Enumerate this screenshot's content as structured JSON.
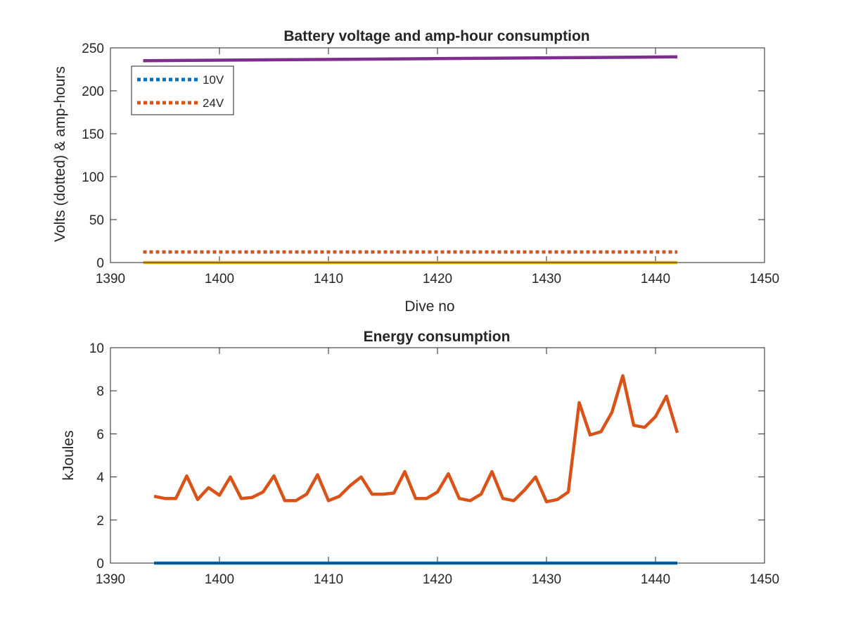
{
  "chart_data": [
    {
      "type": "line",
      "title": "Battery voltage and amp-hour consumption",
      "xlabel": "Dive no",
      "ylabel": "Volts (dotted) & amp-hours",
      "xlim": [
        1390,
        1450
      ],
      "ylim": [
        0,
        250
      ],
      "xticks": [
        1390,
        1400,
        1410,
        1420,
        1430,
        1440,
        1450
      ],
      "yticks": [
        0,
        50,
        100,
        150,
        200,
        250
      ],
      "grid": false,
      "legend": {
        "placement": "top-left",
        "entries": [
          "10V",
          "24V"
        ]
      },
      "series": [
        {
          "name": "10V",
          "style": "dotted",
          "color": "#0072BD",
          "x": [
            1393,
            1442
          ],
          "y": [
            12.3,
            12.3
          ]
        },
        {
          "name": "24V",
          "style": "dotted",
          "color": "#D95319",
          "x": [
            1393,
            1442
          ],
          "y": [
            12.3,
            12.3
          ]
        },
        {
          "style": "solid",
          "color": "#EDB120",
          "x": [
            1393,
            1442
          ],
          "y": [
            0,
            0
          ]
        },
        {
          "style": "solid",
          "color": "#7E2F8E",
          "x": [
            1393,
            1442
          ],
          "y": [
            235,
            239.5
          ]
        }
      ]
    },
    {
      "type": "line",
      "title": "Energy consumption",
      "xlabel": "",
      "ylabel": "kJoules",
      "xlim": [
        1390,
        1450
      ],
      "ylim": [
        0,
        10
      ],
      "xticks": [
        1390,
        1400,
        1410,
        1420,
        1430,
        1440,
        1450
      ],
      "yticks": [
        0,
        2,
        4,
        6,
        8,
        10
      ],
      "grid": false,
      "series": [
        {
          "style": "solid",
          "color": "#0072BD",
          "x": [
            1394,
            1442
          ],
          "y": [
            0,
            0
          ]
        },
        {
          "style": "solid",
          "color": "#D95319",
          "x": [
            1394,
            1395,
            1396,
            1397,
            1398,
            1399,
            1400,
            1401,
            1402,
            1403,
            1404,
            1405,
            1406,
            1407,
            1408,
            1409,
            1410,
            1411,
            1412,
            1413,
            1414,
            1415,
            1416,
            1417,
            1418,
            1419,
            1420,
            1421,
            1422,
            1423,
            1424,
            1425,
            1426,
            1427,
            1428,
            1429,
            1430,
            1431,
            1432,
            1433,
            1434,
            1435,
            1436,
            1437,
            1438,
            1439,
            1440,
            1441,
            1442
          ],
          "y": [
            3.1,
            3.0,
            3.0,
            4.05,
            2.95,
            3.5,
            3.15,
            4.0,
            3.0,
            3.05,
            3.3,
            4.05,
            2.9,
            2.9,
            3.2,
            4.1,
            2.9,
            3.1,
            3.6,
            4.0,
            3.2,
            3.2,
            3.25,
            4.25,
            3.0,
            3.0,
            3.3,
            4.15,
            3.0,
            2.9,
            3.2,
            4.25,
            3.0,
            2.9,
            3.4,
            4.0,
            2.85,
            2.95,
            3.3,
            7.45,
            5.95,
            6.1,
            7.0,
            8.7,
            6.4,
            6.3,
            6.8,
            7.75,
            6.05
          ]
        }
      ]
    }
  ]
}
